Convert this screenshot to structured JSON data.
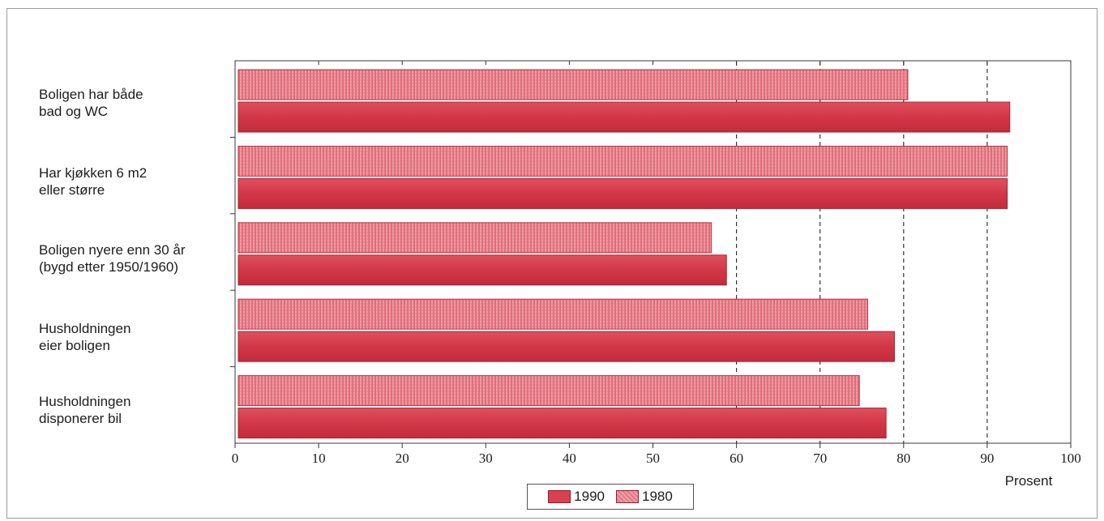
{
  "chart_data": {
    "type": "bar",
    "orientation": "horizontal",
    "categories": [
      "Boligen har både\nbad og WC",
      "Har kjøkken 6 m2\neller større",
      "Boligen nyere enn 30 år\n(bygd etter 1950/1960)",
      "Husholdningen\neier boligen",
      "Husholdningen\ndisponerer bil"
    ],
    "series": [
      {
        "name": "1990",
        "values": [
          92.7,
          92.4,
          58.8,
          78.9,
          77.9
        ],
        "color": "#d8414f"
      },
      {
        "name": "1980",
        "values": [
          80.5,
          92.4,
          57.0,
          75.7,
          74.7
        ],
        "color": "#e98590"
      }
    ],
    "xlabel": "Prosent",
    "xlim": [
      0,
      100
    ],
    "xticks": [
      "0",
      "10",
      "20",
      "30",
      "40",
      "50",
      "60",
      "70",
      "80",
      "90",
      "100"
    ],
    "gridlines_at": [
      60,
      70,
      80,
      90
    ],
    "grid": "dashed vertical",
    "legend_position": "bottom-center"
  }
}
